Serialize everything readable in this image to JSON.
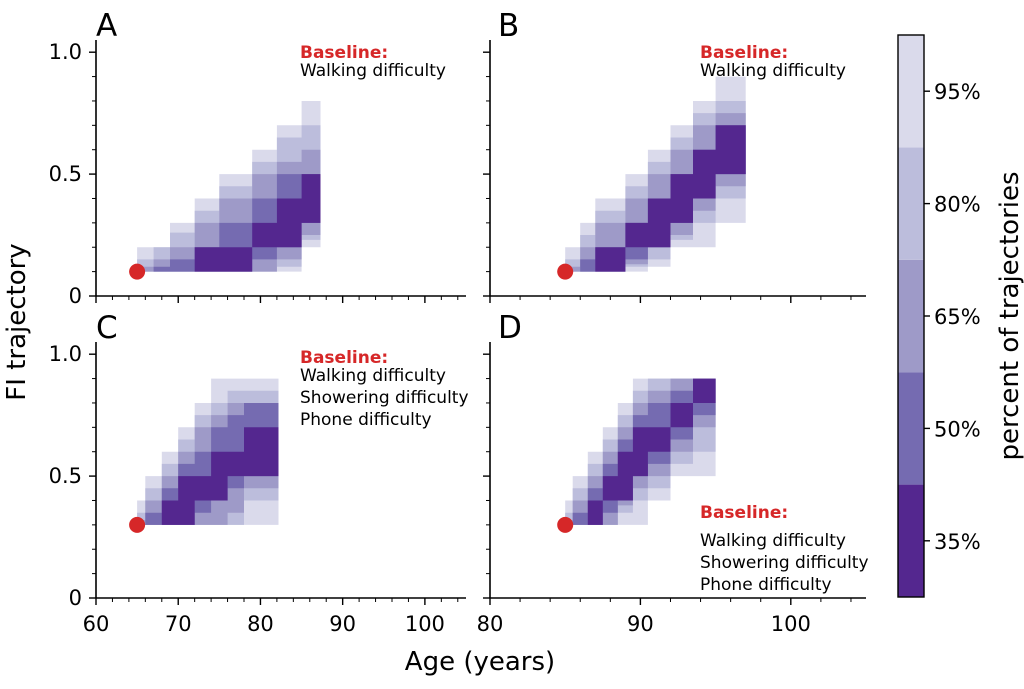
{
  "figure": {
    "xlabel": "Age (years)",
    "ylabel": "FI trajectory",
    "colorbar": {
      "label": "percent of trajectories",
      "ticks": [
        "35%",
        "50%",
        "65%",
        "80%",
        "95%"
      ],
      "colors": [
        "#54278f",
        "#756bb1",
        "#9e9ac8",
        "#bcbddc",
        "#dadaeb"
      ]
    },
    "baseline_color": "#d62728"
  },
  "chart_data": [
    {
      "panel": "A",
      "type": "area",
      "xlim": [
        60,
        105
      ],
      "ylim": [
        0,
        1.05
      ],
      "xticks": [
        60,
        70,
        80,
        90,
        100
      ],
      "yticks": [
        0,
        0.5,
        1.0
      ],
      "ytick_labels": [
        "0",
        "0.5",
        "1.0"
      ],
      "baseline_point": {
        "x": 65,
        "y": 0.1
      },
      "annotation": {
        "title": "Baseline:",
        "lines": [
          "Walking difficulty"
        ]
      },
      "bands": [
        {
          "percent": 95,
          "x": [
            65,
            67,
            69,
            72,
            75,
            79,
            82,
            85,
            87.3
          ],
          "lower": [
            0.1,
            0.1,
            0.1,
            0.1,
            0.1,
            0.1,
            0.1,
            0.2,
            0.3
          ],
          "upper": [
            0.2,
            0.2,
            0.3,
            0.4,
            0.5,
            0.6,
            0.7,
            0.8,
            0.8
          ]
        },
        {
          "percent": 80,
          "x": [
            65,
            67,
            69,
            72,
            75,
            79,
            82,
            85,
            87.3
          ],
          "lower": [
            0.1,
            0.1,
            0.1,
            0.1,
            0.1,
            0.1,
            0.12,
            0.23,
            0.4
          ],
          "upper": [
            0.15,
            0.2,
            0.26,
            0.35,
            0.45,
            0.55,
            0.65,
            0.7,
            0.7
          ]
        },
        {
          "percent": 65,
          "x": [
            65,
            67,
            69,
            72,
            75,
            79,
            82,
            85,
            87.3
          ],
          "lower": [
            0.1,
            0.1,
            0.1,
            0.1,
            0.1,
            0.1,
            0.15,
            0.25,
            0.4
          ],
          "upper": [
            0.12,
            0.15,
            0.2,
            0.3,
            0.4,
            0.5,
            0.55,
            0.6,
            0.6
          ]
        },
        {
          "percent": 50,
          "x": [
            65,
            67,
            69,
            72,
            75,
            79,
            82,
            85,
            87.3
          ],
          "lower": [
            0.1,
            0.1,
            0.1,
            0.1,
            0.1,
            0.15,
            0.2,
            0.3,
            0.4
          ],
          "upper": [
            0.1,
            0.12,
            0.15,
            0.2,
            0.3,
            0.4,
            0.5,
            0.5,
            0.5
          ]
        },
        {
          "percent": 35,
          "x": [
            65,
            67,
            69,
            72,
            75,
            79,
            82,
            85,
            87.3
          ],
          "lower": [
            0.1,
            0.1,
            0.1,
            0.1,
            0.1,
            0.2,
            0.2,
            0.3,
            0.3
          ],
          "upper": [
            0.1,
            0.1,
            0.1,
            0.2,
            0.2,
            0.3,
            0.4,
            0.5,
            0.5
          ]
        }
      ]
    },
    {
      "panel": "B",
      "type": "area",
      "xlim": [
        80,
        105
      ],
      "ylim": [
        0,
        1.05
      ],
      "xticks": [
        80,
        90,
        100
      ],
      "yticks": [
        0,
        0.5,
        1.0
      ],
      "baseline_point": {
        "x": 85,
        "y": 0.1
      },
      "annotation": {
        "title": "Baseline:",
        "lines": [
          "Walking difficulty"
        ]
      },
      "bands": [
        {
          "percent": 95,
          "x": [
            85,
            86,
            87,
            89,
            90.5,
            92,
            93.5,
            95,
            97
          ],
          "lower": [
            0.1,
            0.1,
            0.1,
            0.1,
            0.12,
            0.2,
            0.2,
            0.3,
            0.3
          ],
          "upper": [
            0.2,
            0.3,
            0.4,
            0.5,
            0.6,
            0.7,
            0.8,
            0.9,
            0.9
          ]
        },
        {
          "percent": 80,
          "x": [
            85,
            86,
            87,
            89,
            90.5,
            92,
            93.5,
            95,
            97
          ],
          "lower": [
            0.1,
            0.1,
            0.1,
            0.12,
            0.15,
            0.23,
            0.3,
            0.4,
            0.4
          ],
          "upper": [
            0.15,
            0.25,
            0.35,
            0.45,
            0.55,
            0.65,
            0.75,
            0.8,
            0.8
          ]
        },
        {
          "percent": 65,
          "x": [
            85,
            86,
            87,
            89,
            90.5,
            92,
            93.5,
            95,
            97
          ],
          "lower": [
            0.1,
            0.1,
            0.1,
            0.13,
            0.2,
            0.25,
            0.35,
            0.45,
            0.5
          ],
          "upper": [
            0.12,
            0.2,
            0.3,
            0.4,
            0.5,
            0.6,
            0.7,
            0.75,
            0.75
          ]
        },
        {
          "percent": 50,
          "x": [
            85,
            86,
            87,
            89,
            90.5,
            92,
            93.5,
            95,
            97
          ],
          "lower": [
            0.1,
            0.1,
            0.1,
            0.15,
            0.2,
            0.3,
            0.4,
            0.5,
            0.5
          ],
          "upper": [
            0.1,
            0.15,
            0.2,
            0.3,
            0.4,
            0.5,
            0.6,
            0.7,
            0.7
          ]
        },
        {
          "percent": 35,
          "x": [
            85,
            86,
            87,
            89,
            90.5,
            92,
            93.5,
            95,
            97
          ],
          "lower": [
            0.1,
            0.1,
            0.1,
            0.2,
            0.2,
            0.3,
            0.4,
            0.5,
            0.5
          ],
          "upper": [
            0.1,
            0.1,
            0.2,
            0.3,
            0.4,
            0.5,
            0.6,
            0.7,
            0.7
          ]
        }
      ]
    },
    {
      "panel": "C",
      "type": "area",
      "xlim": [
        60,
        105
      ],
      "ylim": [
        0,
        1.05
      ],
      "xticks": [
        60,
        70,
        80,
        90,
        100
      ],
      "xtick_labels": [
        "60",
        "70",
        "80",
        "90",
        "100"
      ],
      "yticks": [
        0,
        0.5,
        1.0
      ],
      "ytick_labels": [
        "0",
        "0.5",
        "1.0"
      ],
      "baseline_point": {
        "x": 65,
        "y": 0.3
      },
      "annotation": {
        "title": "Baseline:",
        "lines": [
          "Walking difficulty",
          "Showering difficulty",
          "Phone difficulty"
        ]
      },
      "bands": [
        {
          "percent": 95,
          "x": [
            65,
            66,
            68,
            70,
            72,
            74,
            76,
            78,
            82.2
          ],
          "lower": [
            0.3,
            0.3,
            0.3,
            0.3,
            0.3,
            0.3,
            0.3,
            0.3,
            0.3
          ],
          "upper": [
            0.4,
            0.5,
            0.6,
            0.7,
            0.8,
            0.9,
            0.9,
            0.9,
            0.9
          ]
        },
        {
          "percent": 80,
          "x": [
            65,
            66,
            68,
            70,
            72,
            74,
            76,
            78,
            82.2
          ],
          "lower": [
            0.3,
            0.3,
            0.3,
            0.3,
            0.3,
            0.3,
            0.3,
            0.4,
            0.4
          ],
          "upper": [
            0.35,
            0.45,
            0.55,
            0.65,
            0.75,
            0.8,
            0.85,
            0.85,
            0.85
          ]
        },
        {
          "percent": 65,
          "x": [
            65,
            66,
            68,
            70,
            72,
            74,
            76,
            78,
            82.2
          ],
          "lower": [
            0.3,
            0.3,
            0.3,
            0.3,
            0.3,
            0.3,
            0.35,
            0.45,
            0.5
          ],
          "upper": [
            0.32,
            0.4,
            0.5,
            0.6,
            0.7,
            0.75,
            0.8,
            0.8,
            0.8
          ]
        },
        {
          "percent": 50,
          "x": [
            65,
            66,
            68,
            70,
            72,
            74,
            76,
            78,
            82.2
          ],
          "lower": [
            0.3,
            0.3,
            0.3,
            0.3,
            0.35,
            0.4,
            0.45,
            0.5,
            0.55
          ],
          "upper": [
            0.3,
            0.35,
            0.45,
            0.55,
            0.6,
            0.7,
            0.75,
            0.8,
            0.8
          ]
        },
        {
          "percent": 35,
          "x": [
            65,
            66,
            68,
            70,
            72,
            74,
            76,
            78,
            82.2
          ],
          "lower": [
            0.3,
            0.3,
            0.3,
            0.3,
            0.4,
            0.4,
            0.5,
            0.5,
            0.6
          ],
          "upper": [
            0.3,
            0.3,
            0.4,
            0.5,
            0.5,
            0.6,
            0.6,
            0.7,
            0.8
          ]
        }
      ]
    },
    {
      "panel": "D",
      "type": "area",
      "xlim": [
        80,
        105
      ],
      "ylim": [
        0,
        1.05
      ],
      "xticks": [
        80,
        90,
        100
      ],
      "xtick_labels": [
        "80",
        "90",
        "100"
      ],
      "yticks": [
        0,
        0.5,
        1.0
      ],
      "baseline_point": {
        "x": 85,
        "y": 0.3
      },
      "annotation": {
        "title": "Baseline:",
        "lines": [
          "Walking difficulty",
          "Showering difficulty",
          "Phone difficulty"
        ]
      },
      "bands": [
        {
          "percent": 95,
          "x": [
            85,
            85.5,
            86.5,
            87.5,
            88.5,
            89.5,
            90.5,
            92,
            93.5,
            95
          ],
          "lower": [
            0.3,
            0.3,
            0.3,
            0.3,
            0.3,
            0.3,
            0.4,
            0.5,
            0.5,
            0.5
          ],
          "upper": [
            0.4,
            0.5,
            0.6,
            0.7,
            0.8,
            0.9,
            0.9,
            0.9,
            0.9,
            0.9
          ]
        },
        {
          "percent": 80,
          "x": [
            85,
            85.5,
            86.5,
            87.5,
            88.5,
            89.5,
            90.5,
            92,
            93.5,
            95
          ],
          "lower": [
            0.3,
            0.3,
            0.3,
            0.3,
            0.35,
            0.4,
            0.45,
            0.55,
            0.6,
            0.7
          ],
          "upper": [
            0.35,
            0.45,
            0.55,
            0.65,
            0.75,
            0.85,
            0.9,
            0.9,
            0.9,
            0.9
          ]
        },
        {
          "percent": 65,
          "x": [
            85,
            85.5,
            86.5,
            87.5,
            88.5,
            89.5,
            90.5,
            92,
            93.5,
            95
          ],
          "lower": [
            0.3,
            0.3,
            0.3,
            0.3,
            0.38,
            0.45,
            0.5,
            0.6,
            0.7,
            0.75
          ],
          "upper": [
            0.32,
            0.4,
            0.5,
            0.6,
            0.7,
            0.8,
            0.85,
            0.9,
            0.9,
            0.9
          ]
        },
        {
          "percent": 50,
          "x": [
            85,
            85.5,
            86.5,
            87.5,
            88.5,
            89.5,
            90.5,
            92,
            93.5,
            95
          ],
          "lower": [
            0.3,
            0.3,
            0.3,
            0.35,
            0.4,
            0.5,
            0.55,
            0.65,
            0.75,
            0.8
          ],
          "upper": [
            0.3,
            0.35,
            0.45,
            0.55,
            0.65,
            0.75,
            0.8,
            0.85,
            0.9,
            0.9
          ]
        },
        {
          "percent": 35,
          "x": [
            85,
            85.5,
            86.5,
            87.5,
            88.5,
            89.5,
            90.5,
            92,
            93.5,
            95
          ],
          "lower": [
            0.3,
            0.3,
            0.3,
            0.4,
            0.4,
            0.5,
            0.6,
            0.7,
            0.8,
            0.8
          ],
          "upper": [
            0.3,
            0.3,
            0.4,
            0.5,
            0.6,
            0.7,
            0.7,
            0.8,
            0.9,
            0.9
          ]
        }
      ]
    }
  ]
}
